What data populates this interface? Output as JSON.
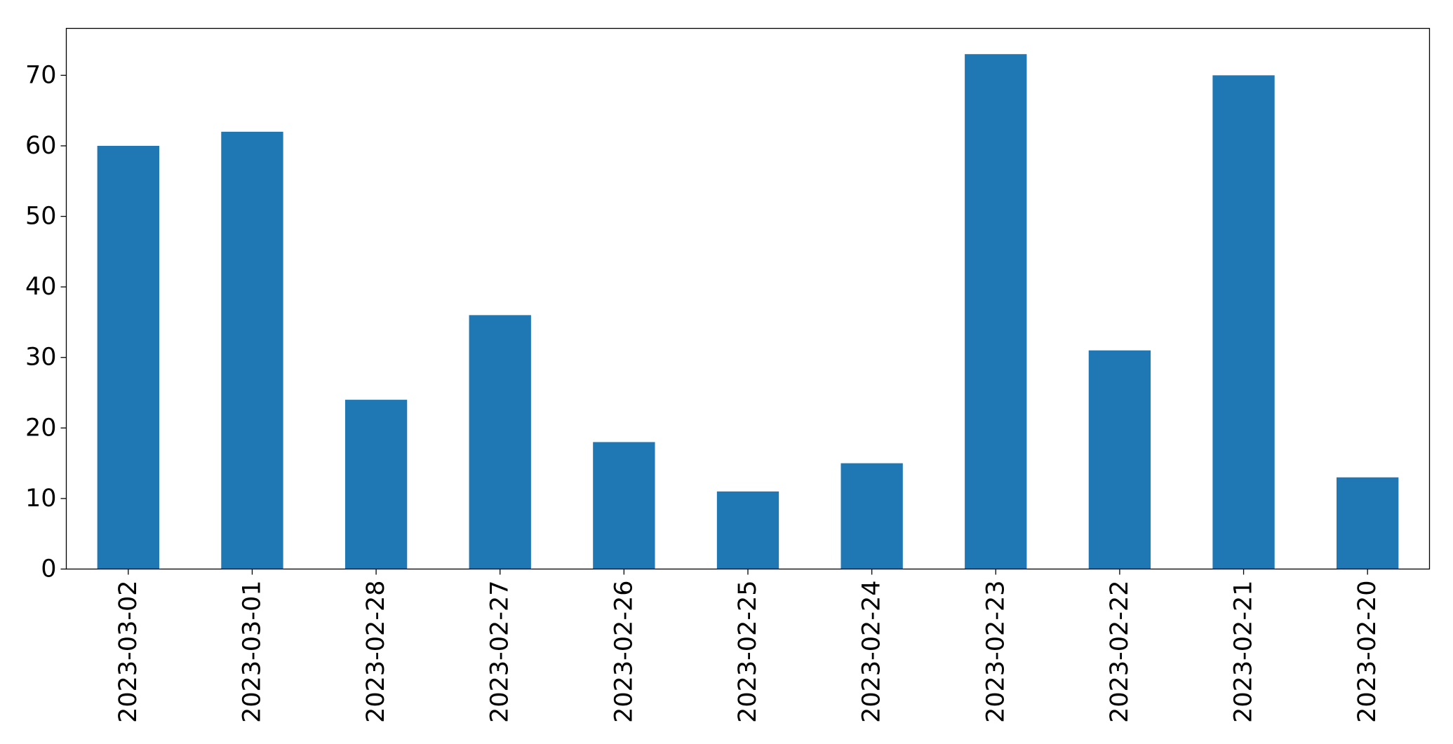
{
  "chart_data": {
    "type": "bar",
    "categories": [
      "2023-03-02",
      "2023-03-01",
      "2023-02-28",
      "2023-02-27",
      "2023-02-26",
      "2023-02-25",
      "2023-02-24",
      "2023-02-23",
      "2023-02-22",
      "2023-02-21",
      "2023-02-20"
    ],
    "values": [
      60,
      62,
      24,
      36,
      18,
      11,
      15,
      73,
      31,
      70,
      13
    ],
    "title": "",
    "xlabel": "",
    "ylabel": "",
    "ylim": [
      0,
      76.65
    ],
    "yticks": [
      0,
      10,
      20,
      30,
      40,
      50,
      60,
      70
    ],
    "grid": false,
    "legend": "none",
    "bar_color": "#1f77b4"
  }
}
